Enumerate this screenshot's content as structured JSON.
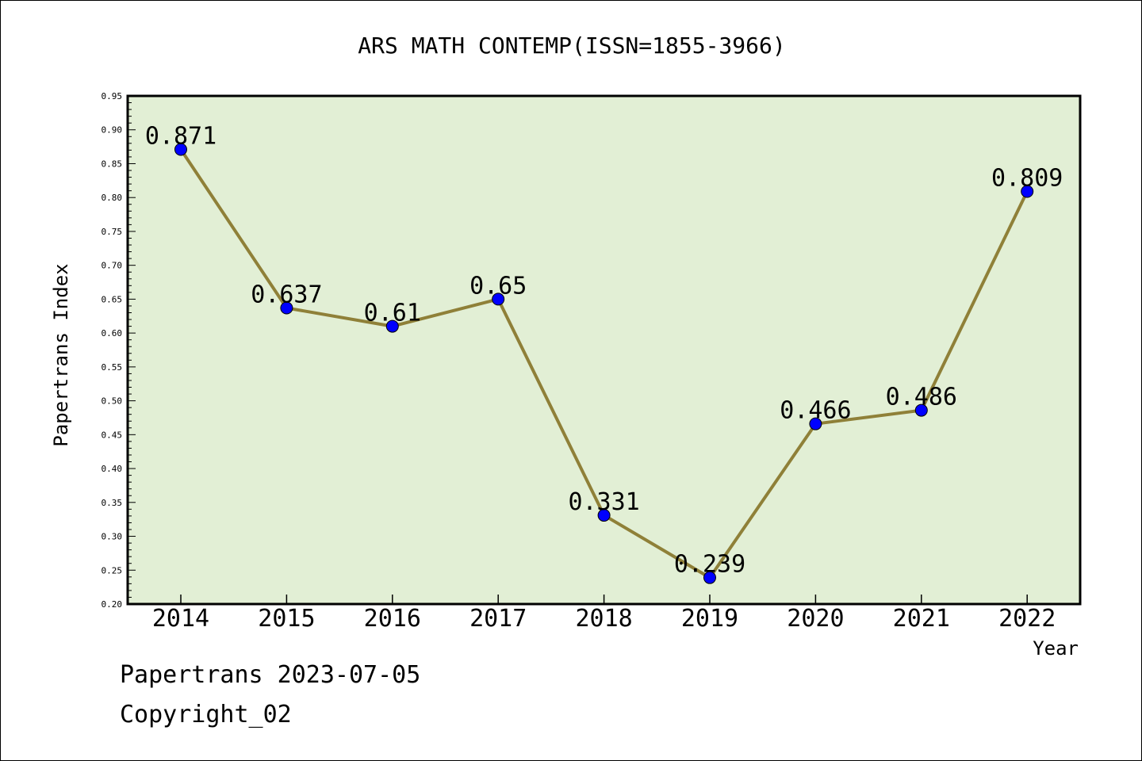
{
  "chart_data": {
    "type": "line",
    "title": "ARS MATH CONTEMP(ISSN=1855-3966)",
    "xlabel": "Year",
    "ylabel": "Papertrans Index",
    "categories": [
      "2014",
      "2015",
      "2016",
      "2017",
      "2018",
      "2019",
      "2020",
      "2021",
      "2022"
    ],
    "values": [
      0.871,
      0.637,
      0.61,
      0.65,
      0.331,
      0.239,
      0.466,
      0.486,
      0.809
    ],
    "data_labels": [
      "0.871",
      "0.637",
      "0.61",
      "0.65",
      "0.331",
      "0.239",
      "0.466",
      "0.486",
      "0.809"
    ],
    "ylim": [
      0.2,
      0.95
    ],
    "yticks": [
      "0.20",
      "0.25",
      "0.30",
      "0.35",
      "0.40",
      "0.45",
      "0.50",
      "0.55",
      "0.60",
      "0.65",
      "0.70",
      "0.75",
      "0.80",
      "0.85",
      "0.90",
      "0.95"
    ],
    "grid": false,
    "legend": "none",
    "colors": {
      "plot_background": "#e2efd5",
      "line": "#8f8038",
      "marker": "#0000ff"
    }
  },
  "footer": {
    "source": "Papertrans 2023-07-05",
    "copyright": "Copyright_02"
  }
}
